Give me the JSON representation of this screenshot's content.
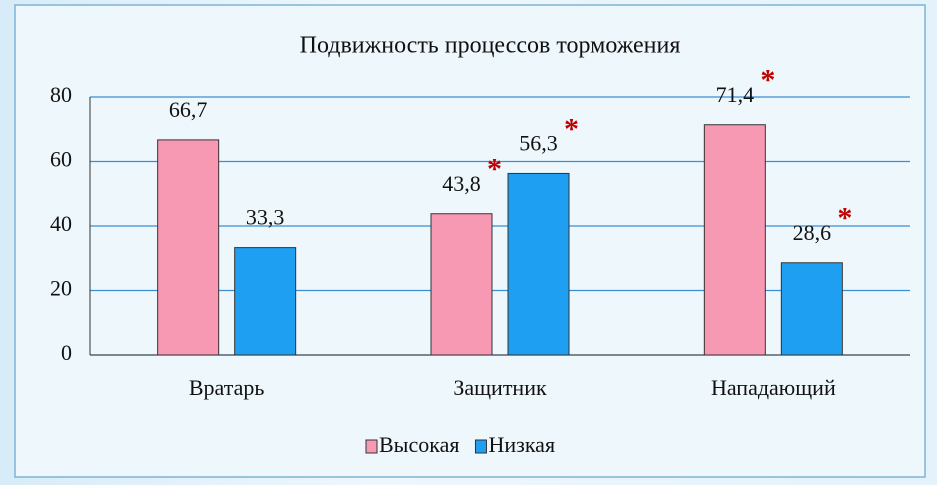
{
  "chart_data": {
    "type": "bar",
    "title": "Подвижность процессов торможения",
    "categories": [
      "Вратарь",
      "Защитник",
      "Нападающий"
    ],
    "series": [
      {
        "name": "Высокая",
        "color": "#f899b4",
        "values": [
          66.7,
          43.8,
          71.4
        ],
        "value_labels": [
          "66,7",
          "43,8",
          "71,4"
        ],
        "significance": [
          null,
          "*",
          "*"
        ]
      },
      {
        "name": "Низкая",
        "color": "#1e9ff2",
        "values": [
          33.3,
          56.3,
          28.6
        ],
        "value_labels": [
          "33,3",
          "56,3",
          "28,6"
        ],
        "significance": [
          null,
          "*",
          "*"
        ]
      }
    ],
    "ylim": [
      0,
      80
    ],
    "yticks": [
      0,
      20,
      40,
      60,
      80
    ],
    "grid": true,
    "legend": "bottom"
  }
}
